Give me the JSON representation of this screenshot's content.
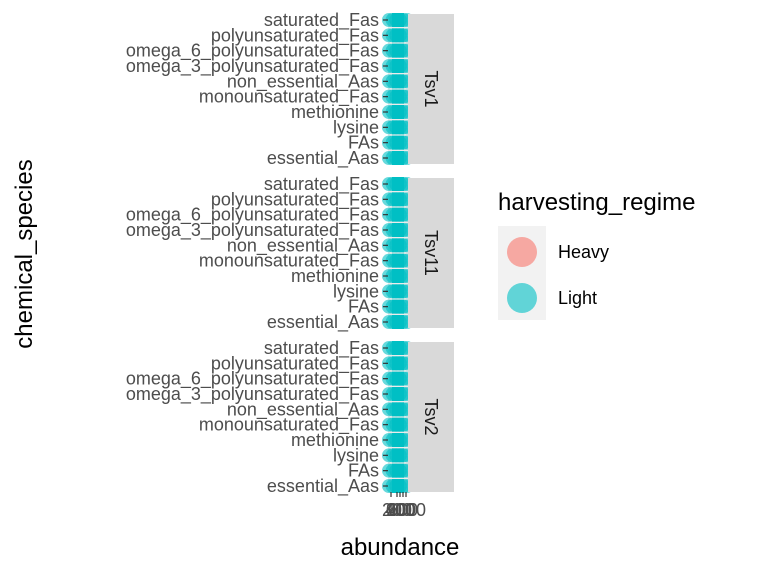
{
  "chart_data": {
    "type": "scatter",
    "facet_by": "site",
    "facets": [
      "Tsv1",
      "Tsv11",
      "Tsv2"
    ],
    "categories": [
      "essential_Aas",
      "FAs",
      "lysine",
      "methionine",
      "monounsaturated_Fas",
      "non_essential_Aas",
      "omega_3_polyunsaturated_Fas",
      "omega_6_polyunsaturated_Fas",
      "polyunsaturated_Fas",
      "saturated_Fas"
    ],
    "xlabel": "abundance",
    "ylabel": "chemical_species",
    "x_tick_labels": [
      "0",
      "200",
      "400",
      "600",
      "2000"
    ],
    "xlim": [
      0,
      2200
    ],
    "legend": {
      "title": "harvesting_regime",
      "position": "right",
      "entries": [
        {
          "name": "Heavy",
          "color": "#F8766D"
        },
        {
          "name": "Light",
          "color": "#00BFC4"
        }
      ]
    },
    "series": [
      {
        "name": "Light",
        "color": "#00BFC4",
        "alpha": 0.6
      }
    ],
    "grid": true,
    "panel_background": "#EBEBEB",
    "strip_background": "#D9D9D9"
  }
}
